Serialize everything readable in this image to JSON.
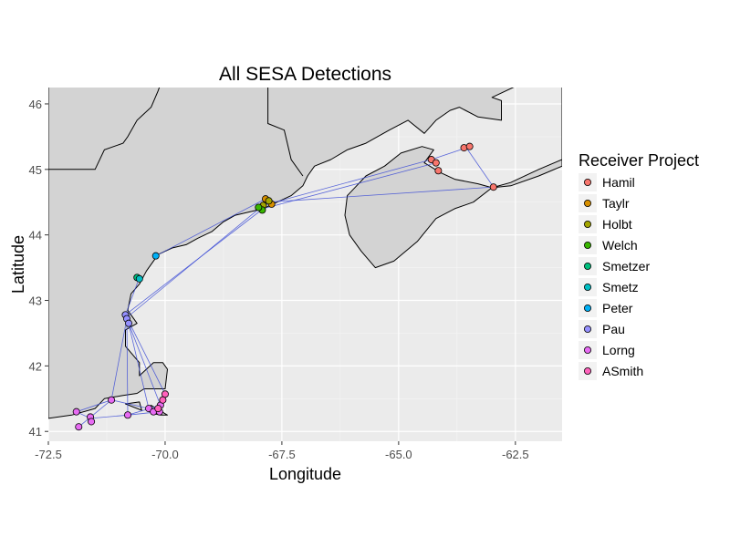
{
  "chart_data": {
    "type": "scatter",
    "title": "All SESA Detections",
    "xlabel": "Longitude",
    "ylabel": "Latitude",
    "xlim": [
      -72.5,
      -61.5
    ],
    "ylim": [
      40.85,
      46.25
    ],
    "x_ticks": [
      -72.5,
      -70.0,
      -67.5,
      -65.0,
      -62.5
    ],
    "x_tick_labels": [
      "-72.5",
      "-70.0",
      "-67.5",
      "-65.0",
      "-62.5"
    ],
    "y_ticks": [
      41,
      42,
      43,
      44,
      45,
      46
    ],
    "y_tick_labels": [
      "41",
      "42",
      "43",
      "44",
      "45",
      "46"
    ],
    "grid": true,
    "panel_background": "#ebebeb",
    "land_color": "#d3d3d3",
    "track_color": "#3f4fd6",
    "legend": {
      "title": "Receiver Project",
      "placement": "right",
      "entries": [
        {
          "label": "Hamil",
          "color": "#f8766d"
        },
        {
          "label": "Taylr",
          "color": "#d89000"
        },
        {
          "label": "Holbt",
          "color": "#a3a500"
        },
        {
          "label": "Welch",
          "color": "#39b600"
        },
        {
          "label": "Smetzer",
          "color": "#00bf7d"
        },
        {
          "label": "Smetz",
          "color": "#00bfc4"
        },
        {
          "label": "Peter",
          "color": "#00b0f6"
        },
        {
          "label": "Pau",
          "color": "#9590ff"
        },
        {
          "label": "Lorng",
          "color": "#e76bf3"
        },
        {
          "label": "ASmith",
          "color": "#ff62bc"
        }
      ]
    },
    "series": [
      {
        "name": "Hamil",
        "points": [
          [
            -64.3,
            45.15
          ],
          [
            -64.2,
            45.1
          ],
          [
            -64.15,
            44.98
          ],
          [
            -63.6,
            45.33
          ],
          [
            -63.48,
            45.35
          ],
          [
            -62.97,
            44.73
          ]
        ]
      },
      {
        "name": "Taylr",
        "points": [
          [
            -67.85,
            44.55
          ],
          [
            -67.72,
            44.47
          ]
        ]
      },
      {
        "name": "Holbt",
        "points": [
          [
            -67.78,
            44.52
          ],
          [
            -67.9,
            44.45
          ]
        ]
      },
      {
        "name": "Welch",
        "points": [
          [
            -67.92,
            44.38
          ],
          [
            -68.0,
            44.42
          ]
        ]
      },
      {
        "name": "Smetzer",
        "points": [
          [
            -70.6,
            43.35
          ]
        ]
      },
      {
        "name": "Smetz",
        "points": [
          [
            -70.55,
            43.33
          ]
        ]
      },
      {
        "name": "Peter",
        "points": [
          [
            -70.2,
            43.68
          ]
        ]
      },
      {
        "name": "Pau",
        "points": [
          [
            -70.85,
            42.78
          ],
          [
            -70.82,
            42.72
          ],
          [
            -70.78,
            42.65
          ]
        ]
      },
      {
        "name": "Lorng",
        "points": [
          [
            -71.9,
            41.3
          ],
          [
            -71.6,
            41.22
          ],
          [
            -71.85,
            41.07
          ],
          [
            -71.58,
            41.15
          ],
          [
            -71.15,
            41.48
          ],
          [
            -70.8,
            41.25
          ],
          [
            -70.35,
            41.35
          ],
          [
            -70.25,
            41.3
          ],
          [
            -70.12,
            41.3
          ],
          [
            -70.1,
            41.4
          ]
        ]
      },
      {
        "name": "ASmith",
        "points": [
          [
            -70.05,
            41.48
          ],
          [
            -70.0,
            41.57
          ],
          [
            -70.15,
            41.35
          ]
        ]
      }
    ],
    "tracks": [
      [
        [
          -70.8,
          42.75
        ],
        [
          -67.9,
          44.45
        ],
        [
          -64.3,
          45.15
        ],
        [
          -63.55,
          45.33
        ],
        [
          -62.97,
          44.73
        ],
        [
          -67.78,
          44.5
        ]
      ],
      [
        [
          -70.55,
          43.35
        ],
        [
          -70.85,
          42.78
        ],
        [
          -70.0,
          41.57
        ],
        [
          -70.15,
          41.3
        ],
        [
          -70.8,
          41.25
        ],
        [
          -71.6,
          41.2
        ],
        [
          -71.9,
          41.3
        ],
        [
          -71.15,
          41.48
        ],
        [
          -70.35,
          41.35
        ],
        [
          -70.8,
          42.7
        ]
      ],
      [
        [
          -70.2,
          43.68
        ],
        [
          -67.85,
          44.55
        ],
        [
          -67.72,
          44.47
        ]
      ],
      [
        [
          -70.85,
          42.78
        ],
        [
          -67.9,
          44.4
        ],
        [
          -64.2,
          45.1
        ]
      ],
      [
        [
          -71.85,
          41.07
        ],
        [
          -71.15,
          41.48
        ],
        [
          -70.82,
          42.72
        ],
        [
          -70.78,
          42.65
        ],
        [
          -70.1,
          41.4
        ],
        [
          -70.8,
          41.25
        ],
        [
          -70.82,
          42.7
        ]
      ]
    ],
    "land": [
      [
        [
          -72.5,
          41.2
        ],
        [
          -72.0,
          41.25
        ],
        [
          -71.5,
          41.35
        ],
        [
          -71.3,
          41.5
        ],
        [
          -70.9,
          41.55
        ],
        [
          -70.6,
          41.58
        ],
        [
          -70.45,
          41.65
        ],
        [
          -70.0,
          41.65
        ],
        [
          -69.95,
          41.95
        ],
        [
          -70.05,
          42.05
        ],
        [
          -70.25,
          42.05
        ],
        [
          -70.55,
          41.85
        ],
        [
          -70.55,
          42.05
        ],
        [
          -70.85,
          42.3
        ],
        [
          -70.85,
          42.55
        ],
        [
          -70.6,
          42.65
        ],
        [
          -70.8,
          42.85
        ],
        [
          -70.73,
          43.1
        ],
        [
          -70.55,
          43.25
        ],
        [
          -70.4,
          43.45
        ],
        [
          -70.15,
          43.7
        ],
        [
          -69.85,
          43.8
        ],
        [
          -69.55,
          43.85
        ],
        [
          -69.3,
          43.95
        ],
        [
          -69.0,
          44.05
        ],
        [
          -68.75,
          44.2
        ],
        [
          -68.5,
          44.3
        ],
        [
          -68.2,
          44.35
        ],
        [
          -67.9,
          44.4
        ],
        [
          -67.6,
          44.5
        ],
        [
          -67.3,
          44.6
        ],
        [
          -67.05,
          44.75
        ],
        [
          -66.95,
          44.9
        ],
        [
          -66.8,
          45.05
        ],
        [
          -66.45,
          45.15
        ],
        [
          -66.1,
          45.3
        ],
        [
          -65.7,
          45.4
        ],
        [
          -65.2,
          45.6
        ],
        [
          -64.8,
          45.75
        ],
        [
          -64.45,
          45.55
        ],
        [
          -64.2,
          45.75
        ],
        [
          -63.9,
          45.9
        ],
        [
          -63.7,
          45.95
        ],
        [
          -63.3,
          45.8
        ],
        [
          -62.8,
          45.75
        ],
        [
          -62.8,
          46.05
        ],
        [
          -63.0,
          46.1
        ],
        [
          -62.4,
          46.3
        ],
        [
          -61.5,
          46.3
        ],
        [
          -61.5,
          45.15
        ],
        [
          -62.0,
          45.0
        ],
        [
          -62.6,
          44.8
        ],
        [
          -63.0,
          44.72
        ],
        [
          -62.6,
          44.75
        ],
        [
          -62.0,
          44.9
        ],
        [
          -61.5,
          45.05
        ],
        [
          -61.5,
          46.3
        ],
        [
          -72.5,
          46.3
        ]
      ],
      [
        [
          -66.1,
          44.6
        ],
        [
          -65.9,
          44.75
        ],
        [
          -65.7,
          44.9
        ],
        [
          -65.3,
          45.05
        ],
        [
          -64.95,
          45.25
        ],
        [
          -64.5,
          45.35
        ],
        [
          -64.25,
          45.3
        ],
        [
          -64.45,
          45.1
        ],
        [
          -64.1,
          44.95
        ],
        [
          -63.8,
          44.85
        ],
        [
          -63.3,
          44.78
        ],
        [
          -63.0,
          44.72
        ],
        [
          -63.4,
          44.5
        ],
        [
          -63.8,
          44.4
        ],
        [
          -64.2,
          44.25
        ],
        [
          -64.6,
          43.9
        ],
        [
          -65.1,
          43.6
        ],
        [
          -65.5,
          43.5
        ],
        [
          -65.8,
          43.75
        ],
        [
          -66.05,
          44.0
        ],
        [
          -66.15,
          44.3
        ]
      ],
      [
        [
          -70.3,
          41.4
        ],
        [
          -69.95,
          41.25
        ],
        [
          -70.1,
          41.25
        ],
        [
          -70.3,
          41.28
        ]
      ],
      [
        [
          -70.85,
          41.42
        ],
        [
          -70.5,
          41.32
        ],
        [
          -70.55,
          41.45
        ]
      ]
    ],
    "boundaries": [
      [
        [
          -72.5,
          45.0
        ],
        [
          -71.5,
          45.0
        ],
        [
          -71.3,
          45.3
        ],
        [
          -70.9,
          45.4
        ],
        [
          -70.8,
          45.5
        ],
        [
          -70.6,
          45.75
        ],
        [
          -70.3,
          45.95
        ],
        [
          -70.15,
          46.2
        ],
        [
          -70.1,
          46.3
        ]
      ],
      [
        [
          -67.8,
          46.3
        ],
        [
          -67.8,
          45.7
        ],
        [
          -67.45,
          45.6
        ],
        [
          -67.3,
          45.15
        ],
        [
          -67.05,
          44.9
        ]
      ]
    ]
  }
}
